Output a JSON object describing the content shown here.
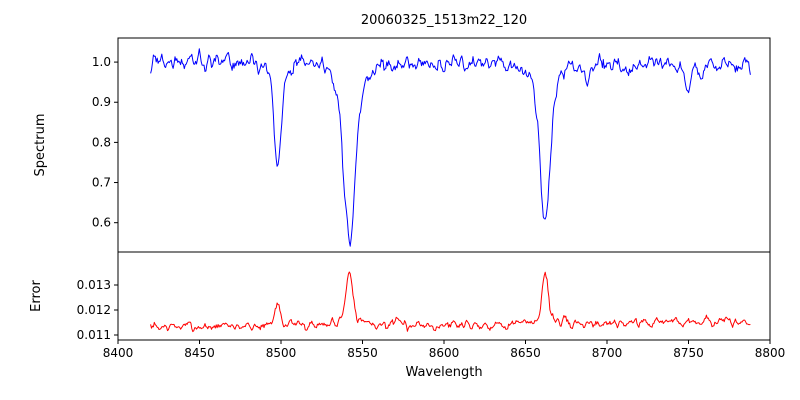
{
  "title": "20060325_1513m22_120",
  "axes": {
    "xlabel": "Wavelength",
    "xlim": [
      8400,
      8800
    ],
    "xticks": [
      {
        "v": 8400,
        "label": "8400"
      },
      {
        "v": 8450,
        "label": "8450"
      },
      {
        "v": 8500,
        "label": "8500"
      },
      {
        "v": 8550,
        "label": "8550"
      },
      {
        "v": 8600,
        "label": "8600"
      },
      {
        "v": 8650,
        "label": "8650"
      },
      {
        "v": 8700,
        "label": "8700"
      },
      {
        "v": 8750,
        "label": "8750"
      },
      {
        "v": 8800,
        "label": "8800"
      }
    ]
  },
  "chart_data": [
    {
      "type": "line",
      "name": "spectrum",
      "color": "#0000ff",
      "ylabel": "Spectrum",
      "ylim": [
        0.527,
        1.06
      ],
      "yticks": [
        {
          "v": 1.0,
          "label": "1.0"
        },
        {
          "v": 0.9,
          "label": "0.9"
        },
        {
          "v": 0.8,
          "label": "0.8"
        },
        {
          "v": 0.7,
          "label": "0.7"
        },
        {
          "v": 0.6,
          "label": "0.6"
        }
      ],
      "x_data_range": [
        8420,
        8788
      ],
      "baseline_points": [
        [
          8420,
          1.0
        ],
        [
          8500,
          0.998
        ],
        [
          8600,
          0.995
        ],
        [
          8700,
          0.992
        ],
        [
          8788,
          0.99
        ]
      ],
      "features": [
        {
          "center": 8498.0,
          "amp": -0.21,
          "sigma": 2.0
        },
        {
          "center": 8498.0,
          "amp": -0.05,
          "sigma": 5.0
        },
        {
          "center": 8542.1,
          "amp": -0.35,
          "sigma": 3.2
        },
        {
          "center": 8542.1,
          "amp": -0.1,
          "sigma": 8.0
        },
        {
          "center": 8662.1,
          "amp": -0.32,
          "sigma": 2.8
        },
        {
          "center": 8662.1,
          "amp": -0.08,
          "sigma": 7.0
        },
        {
          "center": 8688.0,
          "amp": -0.035,
          "sigma": 2.0
        },
        {
          "center": 8750.0,
          "amp": -0.055,
          "sigma": 2.0
        }
      ],
      "key_values": {
        "continuum_level": 1.0,
        "absorption_line_centers": [
          8498,
          8542,
          8662
        ],
        "absorption_line_minima": [
          0.73,
          0.55,
          0.59
        ]
      },
      "noise": {
        "sigma": 0.011,
        "smooth": 1,
        "seed": 42
      }
    },
    {
      "type": "line",
      "name": "error",
      "color": "#ff0000",
      "ylabel": "Error",
      "ylim": [
        0.0108,
        0.01432
      ],
      "yticks": [
        {
          "v": 0.013,
          "label": "0.013"
        },
        {
          "v": 0.012,
          "label": "0.012"
        },
        {
          "v": 0.011,
          "label": "0.011"
        }
      ],
      "x_data_range": [
        8420,
        8788
      ],
      "baseline_points": [
        [
          8420,
          0.01132
        ],
        [
          8480,
          0.01136
        ],
        [
          8520,
          0.0114
        ],
        [
          8560,
          0.01142
        ],
        [
          8620,
          0.01142
        ],
        [
          8680,
          0.01146
        ],
        [
          8730,
          0.01152
        ],
        [
          8755,
          0.01158
        ],
        [
          8788,
          0.01148
        ]
      ],
      "features": [
        {
          "center": 8498.0,
          "amp": 0.0008,
          "sigma": 1.6
        },
        {
          "center": 8498.0,
          "amp": 0.00015,
          "sigma": 4.0
        },
        {
          "center": 8542.1,
          "amp": 0.00185,
          "sigma": 2.0
        },
        {
          "center": 8542.1,
          "amp": 0.00035,
          "sigma": 6.0
        },
        {
          "center": 8662.1,
          "amp": 0.00175,
          "sigma": 1.8
        },
        {
          "center": 8662.1,
          "amp": 0.0003,
          "sigma": 5.0
        }
      ],
      "key_values": {
        "baseline_level": 0.0114,
        "peak_centers": [
          8498,
          8542,
          8662
        ],
        "peak_maxima": [
          0.0123,
          0.0136,
          0.0135
        ]
      },
      "noise": {
        "sigma": 0.0001,
        "smooth": 1,
        "seed": 7
      }
    }
  ]
}
